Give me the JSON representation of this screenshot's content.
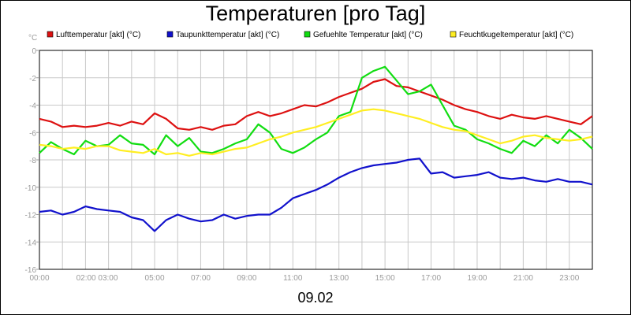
{
  "chart_data": {
    "type": "line",
    "title": "Temperaturen [pro Tag]",
    "xlabel": "09.02",
    "yunit": "°C",
    "ylim": [
      -16,
      0
    ],
    "yticks": [
      "0",
      "-2",
      "-4",
      "-6",
      "-8",
      "-10",
      "-12",
      "-14",
      "-16"
    ],
    "xlim": [
      0,
      24
    ],
    "xtick_labels": [
      "00:00",
      "02:00 03:00",
      "05:00",
      "07:00",
      "09:00",
      "11:00",
      "13:00",
      "15:00",
      "17:00",
      "19:00",
      "21:00",
      "23:00"
    ],
    "grid": true,
    "legend_position": "top",
    "series": [
      {
        "name": "Lufttemperatur [akt] (°C)",
        "color": "#dd1111",
        "x": [
          0,
          0.5,
          1,
          1.5,
          2,
          2.5,
          3,
          3.5,
          4,
          4.5,
          5,
          5.5,
          6,
          6.5,
          7,
          7.5,
          8,
          8.5,
          9,
          9.5,
          10,
          10.5,
          11,
          11.5,
          12,
          12.5,
          13,
          13.5,
          14,
          14.5,
          15,
          15.5,
          16,
          16.5,
          17,
          17.5,
          18,
          18.5,
          19,
          19.5,
          20,
          20.5,
          21,
          21.5,
          22,
          22.5,
          23,
          23.5,
          24
        ],
        "values": [
          -5.0,
          -5.2,
          -5.6,
          -5.5,
          -5.6,
          -5.5,
          -5.3,
          -5.5,
          -5.2,
          -5.4,
          -4.6,
          -5.0,
          -5.7,
          -5.8,
          -5.6,
          -5.8,
          -5.5,
          -5.4,
          -4.8,
          -4.5,
          -4.8,
          -4.6,
          -4.3,
          -4.0,
          -4.1,
          -3.8,
          -3.4,
          -3.1,
          -2.8,
          -2.3,
          -2.1,
          -2.6,
          -2.7,
          -3.0,
          -3.3,
          -3.6,
          -4.0,
          -4.3,
          -4.5,
          -4.8,
          -5.0,
          -4.7,
          -4.9,
          -5.0,
          -4.8,
          -5.0,
          -5.2,
          -5.4,
          -4.8
        ]
      },
      {
        "name": "Taupunkttemperatur [akt] (°C)",
        "color": "#1111cc",
        "x": [
          0,
          0.5,
          1,
          1.5,
          2,
          2.5,
          3,
          3.5,
          4,
          4.5,
          5,
          5.5,
          6,
          6.5,
          7,
          7.5,
          8,
          8.5,
          9,
          9.5,
          10,
          10.5,
          11,
          11.5,
          12,
          12.5,
          13,
          13.5,
          14,
          14.5,
          15,
          15.5,
          16,
          16.5,
          17,
          17.5,
          18,
          18.5,
          19,
          19.5,
          20,
          20.5,
          21,
          21.5,
          22,
          22.5,
          23,
          23.5,
          24
        ],
        "values": [
          -11.8,
          -11.7,
          -12.0,
          -11.8,
          -11.4,
          -11.6,
          -11.7,
          -11.8,
          -12.2,
          -12.4,
          -13.2,
          -12.4,
          -12.0,
          -12.3,
          -12.5,
          -12.4,
          -12.0,
          -12.3,
          -12.1,
          -12.0,
          -12.0,
          -11.5,
          -10.8,
          -10.5,
          -10.2,
          -9.8,
          -9.3,
          -8.9,
          -8.6,
          -8.4,
          -8.3,
          -8.2,
          -8.0,
          -7.9,
          -9.0,
          -8.9,
          -9.3,
          -9.2,
          -9.1,
          -8.9,
          -9.3,
          -9.4,
          -9.3,
          -9.5,
          -9.6,
          -9.4,
          -9.6,
          -9.6,
          -9.8
        ]
      },
      {
        "name": "Gefuehlte Temperatur [akt] (°C)",
        "color": "#11dd11",
        "x": [
          0,
          0.5,
          1,
          1.5,
          2,
          2.5,
          3,
          3.5,
          4,
          4.5,
          5,
          5.5,
          6,
          6.5,
          7,
          7.5,
          8,
          8.5,
          9,
          9.5,
          10,
          10.5,
          11,
          11.5,
          12,
          12.5,
          13,
          13.5,
          14,
          14.5,
          15,
          15.5,
          16,
          16.5,
          17,
          17.5,
          18,
          18.5,
          19,
          19.5,
          20,
          20.5,
          21,
          21.5,
          22,
          22.5,
          23,
          23.5,
          24
        ],
        "values": [
          -7.5,
          -6.7,
          -7.2,
          -7.6,
          -6.6,
          -7.0,
          -6.9,
          -6.2,
          -6.8,
          -6.9,
          -7.6,
          -6.2,
          -7.0,
          -6.4,
          -7.4,
          -7.5,
          -7.2,
          -6.8,
          -6.5,
          -5.4,
          -6.0,
          -7.2,
          -7.5,
          -7.1,
          -6.5,
          -6.0,
          -4.8,
          -4.5,
          -2.0,
          -1.5,
          -1.2,
          -2.2,
          -3.2,
          -3.0,
          -2.5,
          -4.0,
          -5.5,
          -5.8,
          -6.5,
          -6.8,
          -7.2,
          -7.5,
          -6.6,
          -7.0,
          -6.2,
          -6.8,
          -5.8,
          -6.4,
          -7.2
        ]
      },
      {
        "name": "Feuchtkugeltemperatur [akt] (°C)",
        "color": "#ffee22",
        "x": [
          0,
          0.5,
          1,
          1.5,
          2,
          2.5,
          3,
          3.5,
          4,
          4.5,
          5,
          5.5,
          6,
          6.5,
          7,
          7.5,
          8,
          8.5,
          9,
          9.5,
          10,
          10.5,
          11,
          11.5,
          12,
          12.5,
          13,
          13.5,
          14,
          14.5,
          15,
          15.5,
          16,
          16.5,
          17,
          17.5,
          18,
          18.5,
          19,
          19.5,
          20,
          20.5,
          21,
          21.5,
          22,
          22.5,
          23,
          23.5,
          24
        ],
        "values": [
          -6.9,
          -7.0,
          -7.2,
          -7.1,
          -7.2,
          -7.0,
          -7.0,
          -7.3,
          -7.4,
          -7.5,
          -7.2,
          -7.6,
          -7.5,
          -7.7,
          -7.5,
          -7.6,
          -7.4,
          -7.2,
          -7.1,
          -6.8,
          -6.5,
          -6.3,
          -6.0,
          -5.8,
          -5.6,
          -5.3,
          -5.0,
          -4.7,
          -4.4,
          -4.3,
          -4.4,
          -4.6,
          -4.8,
          -5.0,
          -5.3,
          -5.6,
          -5.8,
          -5.9,
          -6.2,
          -6.5,
          -6.8,
          -6.6,
          -6.3,
          -6.2,
          -6.4,
          -6.5,
          -6.6,
          -6.5,
          -6.3
        ]
      }
    ]
  }
}
